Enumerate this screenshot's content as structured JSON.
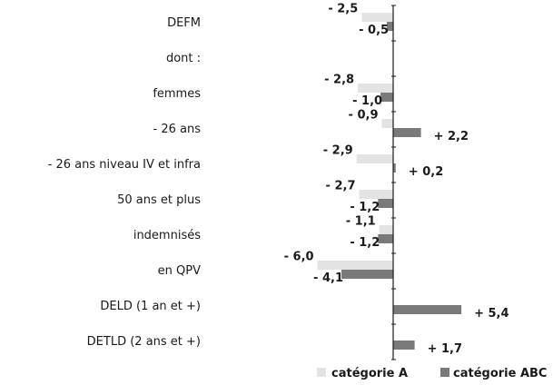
{
  "chart_data": {
    "type": "bar",
    "orientation": "horizontal",
    "categories": [
      "DEFM",
      "dont :",
      "femmes",
      "- 26 ans",
      "- 26 ans niveau IV et infra",
      "50 ans et plus",
      "indemnisés",
      "en QPV",
      "DELD (1 an et +)",
      "DETLD (2 ans et +)"
    ],
    "series": [
      {
        "name": "catégorie A",
        "color": "#e3e3e3",
        "values": [
          -2.5,
          null,
          -2.8,
          -0.9,
          -2.9,
          -2.7,
          -1.1,
          -6.0,
          null,
          null
        ],
        "labels": [
          "- 2,5",
          "",
          "- 2,8",
          "- 0,9",
          "- 2,9",
          "- 2,7",
          "- 1,1",
          "- 6,0",
          "",
          ""
        ]
      },
      {
        "name": "catégorie ABC",
        "color": "#7a7a7a",
        "values": [
          -0.5,
          null,
          -1.0,
          2.2,
          0.2,
          -1.2,
          -1.2,
          -4.1,
          5.4,
          1.7
        ],
        "labels": [
          "- 0,5",
          "",
          "- 1,0",
          "+ 2,2",
          "+ 0,2",
          "- 1,2",
          "- 1,2",
          "- 4,1",
          "+ 5,4",
          "+ 1,7"
        ]
      }
    ],
    "legend": [
      "catégorie A",
      "catégorie ABC"
    ],
    "legend_position": "bottom-right",
    "grid": false,
    "xlim": [
      -6.5,
      6.5
    ]
  }
}
